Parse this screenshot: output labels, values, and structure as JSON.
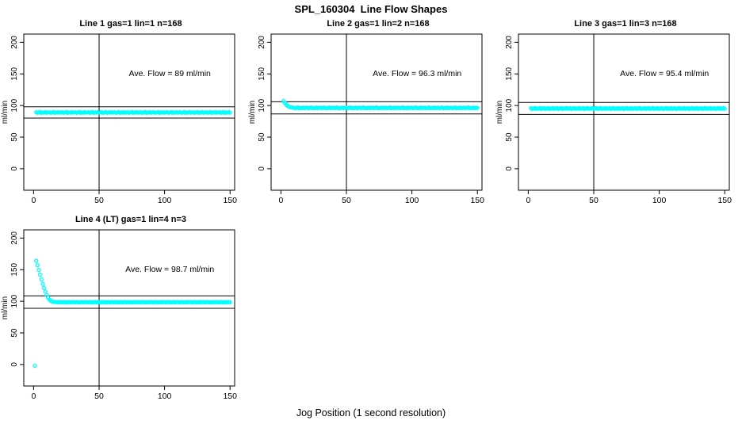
{
  "page_title": "SPL_160304  Line Flow Shapes",
  "footer_xlabel": "Jog Position (1 second resolution)",
  "colors": {
    "points": "#00FFFF",
    "axis": "#000000",
    "background": "#FFFFFF"
  },
  "chart_data": {
    "type": "scatter",
    "title": "SPL_160304  Line Flow Shapes",
    "xlabel": "Jog Position (1 second resolution)",
    "ylabel": "ml/min",
    "marker": "open-circle",
    "grid": false,
    "x_ticks": [
      0,
      50,
      100,
      150
    ],
    "y_ticks": [
      0,
      50,
      100,
      150,
      200
    ],
    "x_range": [
      -7.5,
      153.5
    ],
    "y_range": [
      -34,
      213
    ],
    "panels": [
      {
        "title": "Line 1 gas=1 lin=1 n=168",
        "annotation": "Ave. Flow =  89  ml/min",
        "ave_flow": 89,
        "ref_line_upper": 97.9,
        "ref_line_lower": 80.1,
        "v_line": 50,
        "x_start": 2,
        "x_step": 1,
        "y": [
          89.3,
          88.6,
          89.0,
          89.7,
          88.5,
          89.1,
          88.8,
          89.4,
          88.7,
          89.2,
          89.3,
          88.6,
          89.0,
          89.7,
          88.5,
          89.1,
          88.8,
          89.4,
          88.7,
          89.2,
          89.3,
          88.6,
          89.0,
          89.7,
          88.5,
          89.1,
          88.8,
          89.4,
          88.7,
          89.2,
          89.3,
          88.6,
          89.0,
          89.7,
          88.5,
          89.1,
          88.8,
          89.4,
          88.7,
          89.2,
          89.3,
          88.6,
          89.0,
          89.7,
          88.5,
          89.1,
          88.8,
          89.4,
          88.7,
          89.2,
          89.3,
          88.6,
          89.0,
          89.7,
          88.5,
          89.1,
          88.8,
          89.4,
          88.7,
          89.2,
          89.3,
          88.6,
          89.0,
          89.7,
          88.5,
          89.1,
          88.8,
          89.4,
          88.7,
          89.2,
          89.3,
          88.6,
          89.0,
          89.7,
          88.5,
          89.1,
          88.8,
          89.4,
          88.7,
          89.2,
          89.3,
          88.6,
          89.0,
          89.7,
          88.5,
          89.1,
          88.8,
          89.4,
          88.7,
          89.2,
          89.3,
          88.6,
          89.0,
          89.7,
          88.5,
          89.1,
          88.8,
          89.4,
          88.7,
          89.2,
          89.3,
          88.6,
          89.0,
          89.7,
          88.5,
          89.1,
          88.8,
          89.4,
          88.7,
          89.2,
          89.3,
          88.6,
          89.0,
          89.7,
          88.5,
          89.1,
          88.8,
          89.4,
          88.7,
          89.2,
          89.3,
          88.6,
          89.0,
          89.7,
          88.5,
          89.1,
          88.8,
          89.4,
          88.7,
          89.2,
          89.3,
          88.6,
          89.0,
          89.7,
          88.5,
          89.1,
          88.8,
          89.4,
          88.7,
          89.2,
          89.3,
          88.6,
          89.0,
          89.7,
          88.5,
          89.1,
          88.8,
          89.4,
          88.7
        ]
      },
      {
        "title": "Line 2 gas=1 lin=2 n=168",
        "annotation": "Ave. Flow =  96.3  ml/min",
        "ave_flow": 96.3,
        "ref_line_upper": 105.9,
        "ref_line_lower": 86.7,
        "v_line": 50,
        "x_start": 2,
        "x_step": 1,
        "y": [
          107,
          104,
          101.5,
          99.6,
          98.4,
          97.5,
          97.0,
          96.6,
          96.5,
          95.9,
          96.3,
          96.8,
          95.8,
          96.2,
          96.0,
          96.6,
          95.9,
          96.3,
          96.5,
          95.9,
          96.3,
          96.8,
          95.8,
          96.2,
          96.0,
          96.6,
          95.9,
          96.3,
          96.5,
          95.9,
          96.3,
          96.8,
          95.8,
          96.2,
          96.0,
          96.6,
          95.9,
          96.3,
          96.5,
          95.9,
          96.3,
          96.8,
          95.8,
          96.2,
          96.0,
          96.6,
          95.9,
          96.3,
          96.5,
          95.9,
          96.3,
          96.8,
          95.8,
          96.2,
          96.0,
          96.6,
          95.9,
          96.3,
          96.5,
          95.9,
          96.3,
          96.8,
          95.8,
          96.2,
          96.0,
          96.6,
          95.9,
          96.3,
          96.5,
          95.9,
          96.3,
          96.8,
          95.8,
          96.2,
          96.0,
          96.6,
          95.9,
          96.3,
          96.5,
          95.9,
          96.3,
          96.8,
          95.8,
          96.2,
          96.0,
          96.6,
          95.9,
          96.3,
          96.5,
          95.9,
          96.3,
          96.8,
          95.8,
          96.2,
          96.0,
          96.6,
          95.9,
          96.3,
          96.5,
          95.9,
          96.3,
          96.8,
          95.8,
          96.2,
          96.0,
          96.6,
          95.9,
          96.3,
          96.5,
          95.9,
          96.3,
          96.8,
          95.8,
          96.2,
          96.0,
          96.6,
          95.9,
          96.3,
          96.5,
          95.9,
          96.3,
          96.8,
          95.8,
          96.2,
          96.0,
          96.6,
          95.9,
          96.3,
          96.5,
          95.9,
          96.3,
          96.8,
          95.8,
          96.2,
          96.0,
          96.6,
          95.9,
          96.3,
          96.5,
          95.9,
          96.3,
          96.8,
          95.8,
          96.2,
          96.0,
          96.6,
          95.9,
          96.3,
          96.2
        ]
      },
      {
        "title": "Line 3 gas=1 lin=3 n=168",
        "annotation": "Ave. Flow =  95.4  ml/min",
        "ave_flow": 95.4,
        "ref_line_upper": 104.9,
        "ref_line_lower": 85.9,
        "v_line": 50,
        "x_start": 2,
        "x_step": 1,
        "y": [
          95.8,
          94.7,
          95.3,
          96.0,
          94.8,
          95.4,
          95.0,
          95.9,
          94.8,
          95.5,
          95.8,
          94.7,
          95.3,
          96.0,
          94.8,
          95.4,
          95.0,
          95.9,
          94.8,
          95.5,
          95.8,
          94.7,
          95.3,
          96.0,
          94.8,
          95.4,
          95.0,
          95.9,
          94.8,
          95.5,
          95.8,
          94.7,
          95.3,
          96.0,
          94.8,
          95.4,
          95.0,
          95.9,
          94.8,
          95.5,
          95.8,
          94.7,
          95.3,
          96.0,
          94.8,
          95.4,
          95.0,
          95.9,
          94.8,
          95.5,
          95.8,
          94.7,
          95.3,
          96.0,
          94.8,
          95.4,
          95.0,
          95.9,
          94.8,
          95.5,
          95.8,
          94.7,
          95.3,
          96.0,
          94.8,
          95.4,
          95.0,
          95.9,
          94.8,
          95.5,
          95.8,
          94.7,
          95.3,
          96.0,
          94.8,
          95.4,
          95.0,
          95.9,
          94.8,
          95.5,
          95.8,
          94.7,
          95.3,
          96.0,
          94.8,
          95.4,
          95.0,
          95.9,
          94.8,
          95.5,
          95.8,
          94.7,
          95.3,
          96.0,
          94.8,
          95.4,
          95.0,
          95.9,
          94.8,
          95.5,
          95.8,
          94.7,
          95.3,
          96.0,
          94.8,
          95.4,
          95.0,
          95.9,
          94.8,
          95.5,
          95.8,
          94.7,
          95.3,
          96.0,
          94.8,
          95.4,
          95.0,
          95.9,
          94.8,
          95.5,
          95.8,
          94.7,
          95.3,
          96.0,
          94.8,
          95.4,
          95.0,
          95.9,
          94.8,
          95.5,
          95.8,
          94.7,
          95.3,
          96.0,
          94.8,
          95.4,
          95.0,
          95.9,
          94.8,
          95.5,
          95.8,
          94.7,
          95.3,
          96.0,
          94.8,
          95.4,
          95.0,
          95.9,
          94.8
        ]
      },
      {
        "title": "Line 4 (LT) gas=1 lin=4 n=3",
        "annotation": "Ave. Flow =  98.7  ml/min",
        "ave_flow": 98.7,
        "ref_line_upper": 108.6,
        "ref_line_lower": 88.8,
        "v_line": 50,
        "x_start": 1,
        "x_step": 1,
        "y": [
          -2,
          164,
          157,
          149.5,
          142,
          134.5,
          127.5,
          121,
          115,
          110,
          106,
          103,
          101,
          99.8,
          99.2,
          98.9,
          98.7,
          98.6,
          98.5,
          98.7,
          98.2,
          98.5,
          98.9,
          98.1,
          98.4,
          98.3,
          98.8,
          98.2,
          98.6,
          98.7,
          98.2,
          98.5,
          98.9,
          98.1,
          98.4,
          98.3,
          98.8,
          98.2,
          98.6,
          98.7,
          98.2,
          98.5,
          98.9,
          98.1,
          98.4,
          98.3,
          98.8,
          98.2,
          98.6,
          98.7,
          98.2,
          98.5,
          98.9,
          98.1,
          98.4,
          98.3,
          98.8,
          98.2,
          98.6,
          98.7,
          98.2,
          98.5,
          98.9,
          98.1,
          98.4,
          98.3,
          98.8,
          98.2,
          98.6,
          98.7,
          98.2,
          98.5,
          98.9,
          98.1,
          98.4,
          98.3,
          98.8,
          98.2,
          98.6,
          98.7,
          98.2,
          98.5,
          98.9,
          98.1,
          98.4,
          98.3,
          98.8,
          98.2,
          98.6,
          98.7,
          98.2,
          98.5,
          98.9,
          98.1,
          98.4,
          98.3,
          98.8,
          98.2,
          98.6,
          98.7,
          98.2,
          98.5,
          98.9,
          98.1,
          98.4,
          98.3,
          98.8,
          98.2,
          98.6,
          98.7,
          98.2,
          98.5,
          98.9,
          98.1,
          98.4,
          98.3,
          98.8,
          98.2,
          98.6,
          98.7,
          98.2,
          98.5,
          98.9,
          98.1,
          98.4,
          98.3,
          98.8,
          98.2,
          98.6,
          98.7,
          98.2,
          98.5,
          98.9,
          98.1,
          98.4,
          98.3,
          98.8,
          98.2,
          98.6,
          98.7,
          98.2,
          98.5,
          98.9,
          98.1,
          98.4,
          98.3,
          98.8,
          98.2,
          98.6,
          98.4
        ]
      }
    ]
  }
}
